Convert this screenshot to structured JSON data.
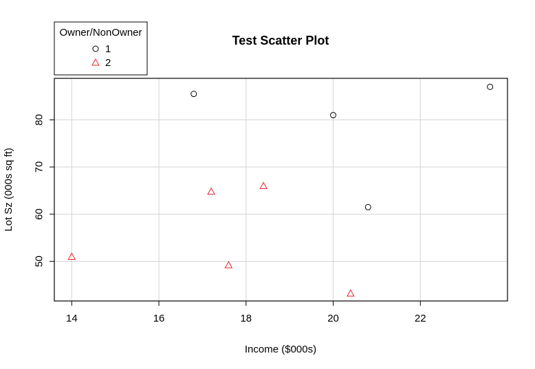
{
  "chart_data": {
    "type": "scatter",
    "title": "Test Scatter Plot",
    "xlabel": "Income ($000s)",
    "ylabel": "Lot Sz (000s sq ft)",
    "xlim": [
      13.6,
      24.0
    ],
    "ylim": [
      41.6,
      88.8
    ],
    "xticks": [
      14,
      16,
      18,
      20,
      22
    ],
    "yticks": [
      50,
      60,
      70,
      80
    ],
    "grid": true,
    "legend": {
      "title": "Owner/NonOwner",
      "placement": "top-left",
      "entries": [
        "1",
        "2"
      ]
    },
    "series": [
      {
        "name": "1",
        "color": "#000000",
        "marker": "circle",
        "points": [
          {
            "x": 16.8,
            "y": 85.5
          },
          {
            "x": 20.0,
            "y": 81.0
          },
          {
            "x": 20.8,
            "y": 61.5
          },
          {
            "x": 23.6,
            "y": 87.0
          }
        ]
      },
      {
        "name": "2",
        "color": "#e8242c",
        "marker": "triangle",
        "points": [
          {
            "x": 14.0,
            "y": 51.0
          },
          {
            "x": 17.2,
            "y": 64.8
          },
          {
            "x": 17.6,
            "y": 49.2
          },
          {
            "x": 18.4,
            "y": 66.0
          },
          {
            "x": 20.4,
            "y": 43.2
          }
        ]
      }
    ]
  }
}
